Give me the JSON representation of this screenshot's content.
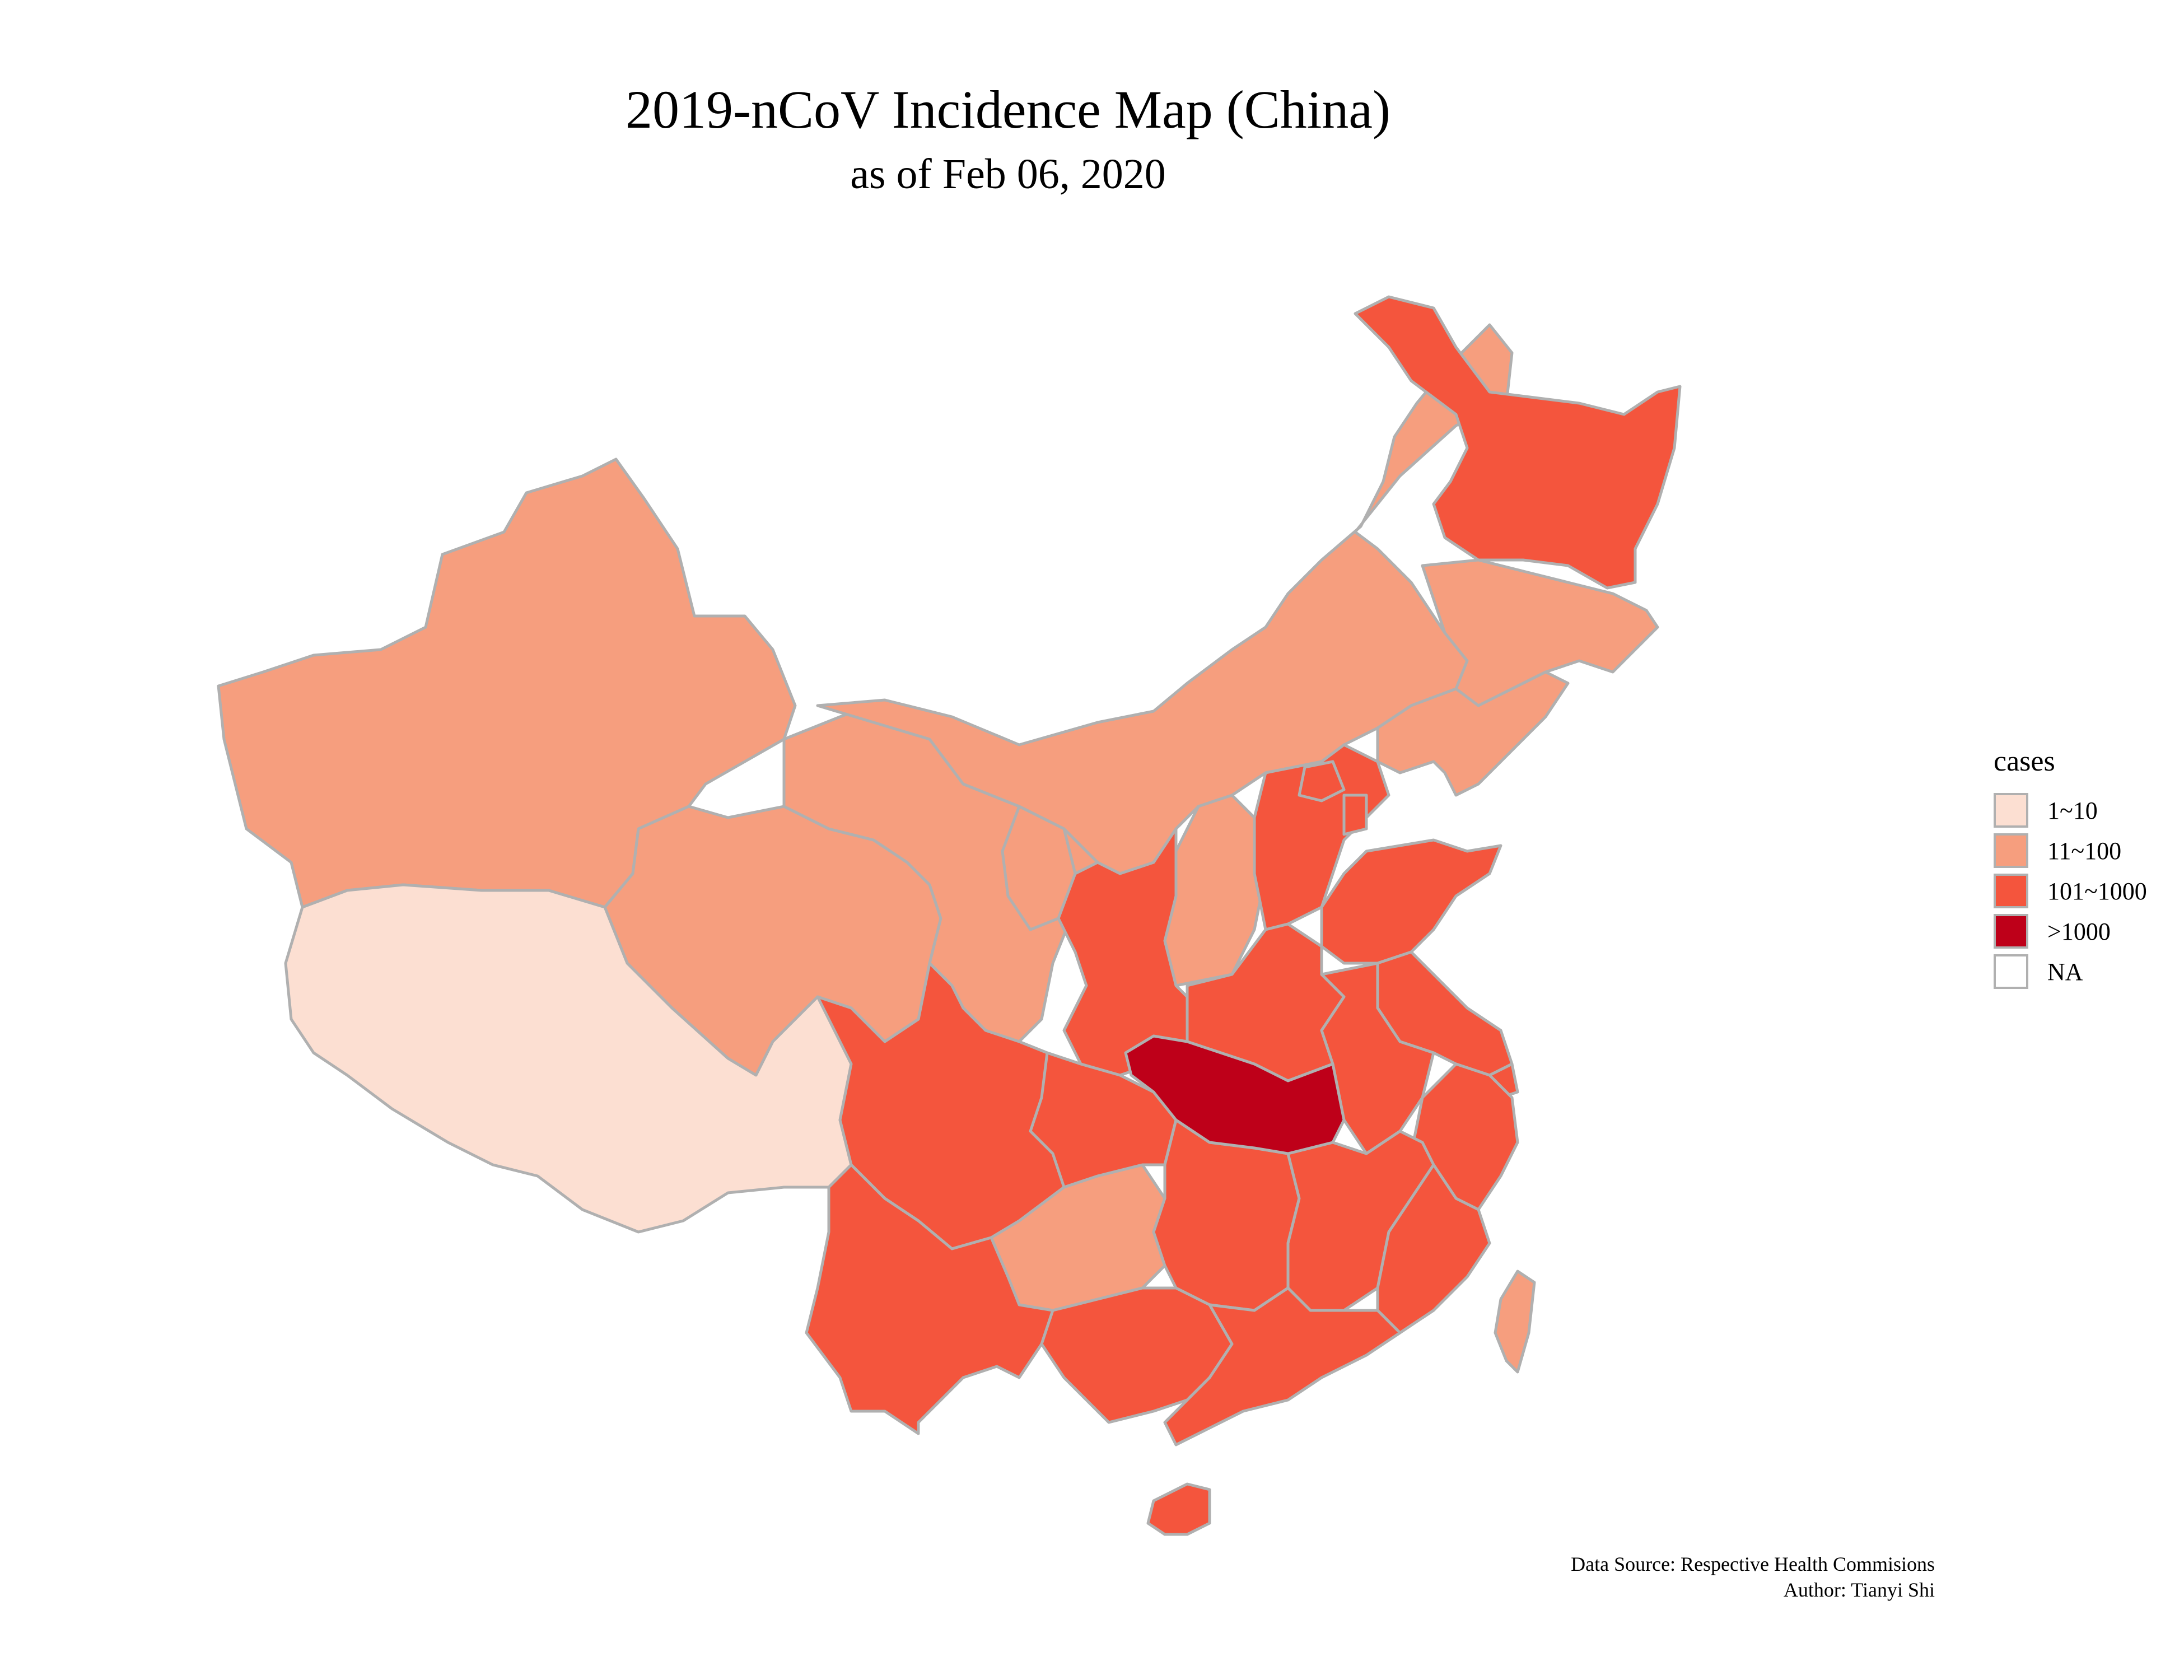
{
  "title": "2019-nCoV Incidence Map (China)",
  "subtitle": "as of Feb 06, 2020",
  "legend": {
    "title": "cases",
    "items": [
      {
        "label": "1~10",
        "color": "#fcdfd2"
      },
      {
        "label": "11~100",
        "color": "#f69e7e"
      },
      {
        "label": "101~1000",
        "color": "#f4553d"
      },
      {
        "label": ">1000",
        "color": "#be0019"
      },
      {
        "label": "NA",
        "color": "#ffffff"
      }
    ]
  },
  "border_color": "#b0b0b0",
  "caption": {
    "source": "Data Source: Respective Health Commisions",
    "author": "Author: Tianyi Shi"
  }
}
